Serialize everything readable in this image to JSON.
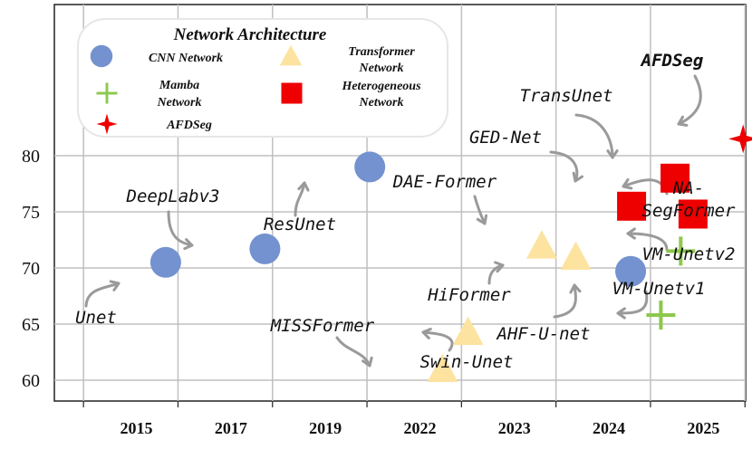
{
  "chart_data": {
    "type": "scatter",
    "title": "",
    "xlabel": "",
    "ylabel": "",
    "ylim": [
      57.5,
      87.5
    ],
    "yticks": [
      60,
      65,
      70,
      75,
      80
    ],
    "xticks": [
      {
        "label": "2015",
        "pos": 1
      },
      {
        "label": "2017",
        "pos": 2
      },
      {
        "label": "2019",
        "pos": 3
      },
      {
        "label": "2022",
        "pos": 4
      },
      {
        "label": "2023",
        "pos": 5
      },
      {
        "label": "2024",
        "pos": 6
      },
      {
        "label": "2025",
        "pos": 7
      }
    ],
    "grid": true,
    "legend": {
      "title": "Network Architecture",
      "placement": "top-left",
      "entries": [
        {
          "category": "cnn",
          "lines": [
            "CNN Network"
          ]
        },
        {
          "category": "transformer",
          "lines": [
            "Transformer",
            "Network"
          ]
        },
        {
          "category": "mamba",
          "lines": [
            "Mamba",
            "Network"
          ]
        },
        {
          "category": "heterogeneous",
          "lines": [
            "Heterogeneous",
            "Network"
          ]
        },
        {
          "category": "afdseg",
          "lines": [
            "AFDSeg"
          ]
        }
      ]
    },
    "colors": {
      "cnn": "#7392cf",
      "transformer": "#fde3a0",
      "mamba": "#8cc84b",
      "heterogeneous": "#ee0000",
      "afdseg": "#ee0000",
      "grid": "#c0c0c0"
    },
    "points": [
      {
        "name": "Unet",
        "category": "cnn",
        "x": 1.37,
        "y": 70.5
      },
      {
        "name": "DeepLabv3",
        "category": "cnn",
        "x": 2.42,
        "y": 71.7
      },
      {
        "name": "ResUnet",
        "category": "cnn",
        "x": 3.53,
        "y": 79.0
      },
      {
        "name": "MISSFormer",
        "category": "transformer",
        "x": 4.3,
        "y": 61.0
      },
      {
        "name": "Swin-Unet",
        "category": "transformer",
        "x": 4.57,
        "y": 64.3
      },
      {
        "name": "DAE-Former",
        "category": "transformer",
        "x": 5.35,
        "y": 72.0
      },
      {
        "name": "HiFormer",
        "category": "transformer",
        "x": 5.71,
        "y": 71.0
      },
      {
        "name": "AHF-U-net",
        "category": "cnn",
        "x": 6.29,
        "y": 69.7
      },
      {
        "name": "GED-Net",
        "category": "heterogeneous",
        "x": 6.3,
        "y": 75.5
      },
      {
        "name": "TransUnet",
        "category": "heterogeneous",
        "x": 6.76,
        "y": 78.0
      },
      {
        "name": "NA-SegFormer",
        "category": "heterogeneous",
        "x": 6.95,
        "y": 74.8
      },
      {
        "name": "VM-Unetv1",
        "category": "mamba",
        "x": 6.61,
        "y": 65.8
      },
      {
        "name": "VM-Unetv2",
        "category": "mamba",
        "x": 6.82,
        "y": 71.5
      },
      {
        "name": "AFDSeg",
        "category": "afdseg",
        "x": 7.48,
        "y": 81.5
      }
    ],
    "labels": [
      {
        "text": "Unet",
        "lines": [
          "Unet"
        ]
      },
      {
        "text": "DeepLabv3",
        "lines": [
          "DeepLabv3"
        ]
      },
      {
        "text": "ResUnet",
        "lines": [
          "ResUnet"
        ]
      },
      {
        "text": "MISSFormer",
        "lines": [
          "MISSFormer"
        ]
      },
      {
        "text": "Swin-Unet",
        "lines": [
          "Swin-Unet"
        ]
      },
      {
        "text": "DAE-Former",
        "lines": [
          "DAE-Former"
        ]
      },
      {
        "text": "HiFormer",
        "lines": [
          "HiFormer"
        ]
      },
      {
        "text": "AHF-U-net",
        "lines": [
          "AHF-U-net"
        ]
      },
      {
        "text": "GED-Net",
        "lines": [
          "GED-Net"
        ]
      },
      {
        "text": "TransUnet",
        "lines": [
          "TransUnet"
        ]
      },
      {
        "text": "NA-SegFormer",
        "lines": [
          "NA-",
          "SegFormer"
        ]
      },
      {
        "text": "VM-Unetv1",
        "lines": [
          "VM-Unetv1"
        ]
      },
      {
        "text": "VM-Unetv2",
        "lines": [
          "VM-Unetv2"
        ]
      },
      {
        "text": "AFDSeg",
        "lines": [
          "AFDSeg"
        ]
      }
    ]
  }
}
